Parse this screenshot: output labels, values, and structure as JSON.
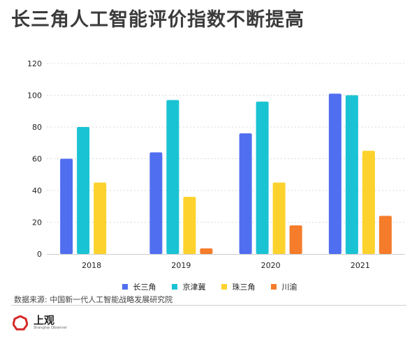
{
  "page": {
    "title": "长三角人工智能评价指数不断提高"
  },
  "source": "数据来源: 中国新一代人工智能战略发展研究院",
  "brand": {
    "name": "上观",
    "subtitle": "Shanghai Observer"
  },
  "colors": {
    "series": [
      "#4f6ef0",
      "#19c3d3",
      "#fdd22c",
      "#f57c2a"
    ],
    "grid": "#d9d9d9",
    "brand_red": "#d62828"
  },
  "chart_data": {
    "type": "bar",
    "title": "长三角人工智能评价指数不断提高",
    "categories": [
      "2018",
      "2019",
      "2020",
      "2021"
    ],
    "series": [
      {
        "name": "长三角",
        "values": [
          60,
          64,
          76,
          101
        ]
      },
      {
        "name": "京津冀",
        "values": [
          80,
          97,
          96,
          100
        ]
      },
      {
        "name": "珠三角",
        "values": [
          45,
          36,
          45,
          65
        ]
      },
      {
        "name": "川渝",
        "values": [
          0,
          3.5,
          18,
          24
        ]
      }
    ],
    "yticks": [
      0,
      20,
      40,
      60,
      80,
      100,
      120
    ],
    "ylim": [
      0,
      120
    ],
    "xlabel": "",
    "ylabel": "",
    "grid": true,
    "legend_position": "bottom"
  }
}
